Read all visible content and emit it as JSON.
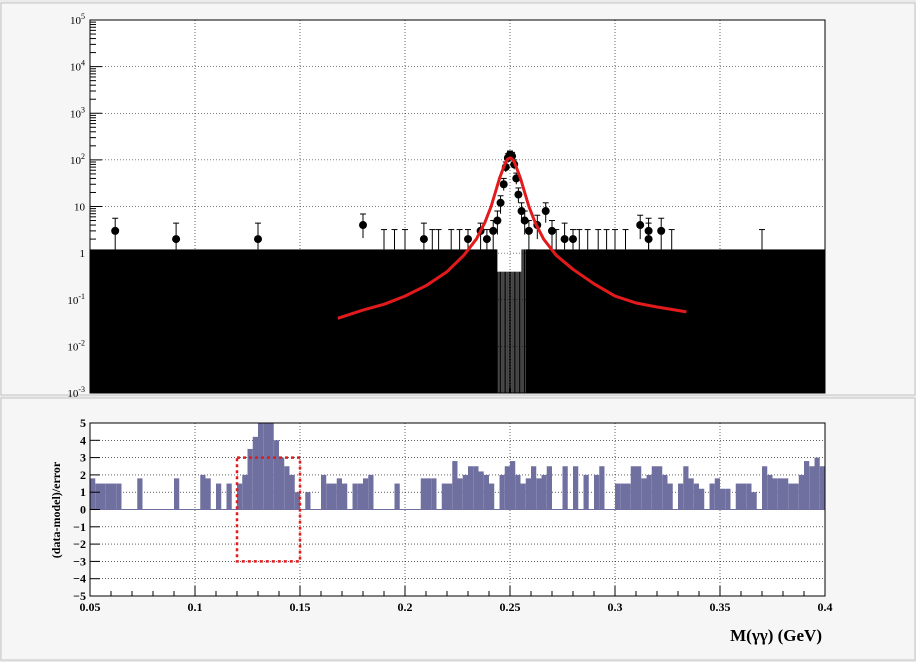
{
  "chart_data": [
    {
      "panel": "top",
      "type": "scatter",
      "y_scale": "log",
      "xlim": [
        0.05,
        0.4
      ],
      "ylim": [
        0.001,
        100000
      ],
      "grid": true,
      "yticks": [
        {
          "v": 0.001,
          "base": "10",
          "exp": "-3"
        },
        {
          "v": 0.01,
          "base": "10",
          "exp": "-2"
        },
        {
          "v": 0.1,
          "base": "10",
          "exp": "-1"
        },
        {
          "v": 1,
          "base": "1",
          "exp": ""
        },
        {
          "v": 10,
          "base": "10",
          "exp": ""
        },
        {
          "v": 100,
          "base": "10",
          "exp": "2"
        },
        {
          "v": 1000,
          "base": "10",
          "exp": "3"
        },
        {
          "v": 10000,
          "base": "10",
          "exp": "4"
        },
        {
          "v": 100000,
          "base": "10",
          "exp": "5"
        }
      ],
      "data_band_level": 1.2,
      "data_points": [
        {
          "x": 0.062,
          "y": 3,
          "lo": 1.2,
          "hi": 5.6
        },
        {
          "x": 0.091,
          "y": 2,
          "lo": 1.2,
          "hi": 4.4
        },
        {
          "x": 0.13,
          "y": 2,
          "lo": 1.2,
          "hi": 4.4
        },
        {
          "x": 0.18,
          "y": 4,
          "lo": 2.1,
          "hi": 6.9
        },
        {
          "x": 0.209,
          "y": 2,
          "lo": 1.2,
          "hi": 4.4
        },
        {
          "x": 0.23,
          "y": 2,
          "lo": 1.2,
          "hi": 3.2
        },
        {
          "x": 0.236,
          "y": 3,
          "lo": 1.2,
          "hi": 4.4
        },
        {
          "x": 0.239,
          "y": 2,
          "lo": 1.2,
          "hi": 3.2
        },
        {
          "x": 0.242,
          "y": 3,
          "lo": 1.2,
          "hi": 5.0
        },
        {
          "x": 0.244,
          "y": 5,
          "lo": 2.5,
          "hi": 8.0
        },
        {
          "x": 0.2455,
          "y": 12,
          "lo": 7,
          "hi": 17
        },
        {
          "x": 0.247,
          "y": 30,
          "lo": 22,
          "hi": 40
        },
        {
          "x": 0.248,
          "y": 70,
          "lo": 55,
          "hi": 90
        },
        {
          "x": 0.249,
          "y": 110,
          "lo": 90,
          "hi": 135
        },
        {
          "x": 0.25,
          "y": 130,
          "lo": 108,
          "hi": 155
        },
        {
          "x": 0.251,
          "y": 120,
          "lo": 100,
          "hi": 145
        },
        {
          "x": 0.252,
          "y": 80,
          "lo": 63,
          "hi": 100
        },
        {
          "x": 0.253,
          "y": 40,
          "lo": 30,
          "hi": 52
        },
        {
          "x": 0.254,
          "y": 18,
          "lo": 12,
          "hi": 25
        },
        {
          "x": 0.2555,
          "y": 8,
          "lo": 4.5,
          "hi": 12
        },
        {
          "x": 0.257,
          "y": 5,
          "lo": 2.5,
          "hi": 8.0
        },
        {
          "x": 0.259,
          "y": 3,
          "lo": 1.2,
          "hi": 5.0
        },
        {
          "x": 0.263,
          "y": 4,
          "lo": 2.0,
          "hi": 6.5
        },
        {
          "x": 0.267,
          "y": 8,
          "lo": 4.5,
          "hi": 12
        },
        {
          "x": 0.27,
          "y": 3,
          "lo": 1.2,
          "hi": 5.0
        },
        {
          "x": 0.276,
          "y": 2,
          "lo": 1.2,
          "hi": 4.4
        },
        {
          "x": 0.28,
          "y": 2,
          "lo": 1.2,
          "hi": 3.2
        },
        {
          "x": 0.312,
          "y": 4,
          "lo": 2.0,
          "hi": 6.5
        },
        {
          "x": 0.316,
          "y": 3,
          "lo": 1.2,
          "hi": 5.6
        },
        {
          "x": 0.316,
          "y": 2,
          "lo": 1.2,
          "hi": 4.4
        },
        {
          "x": 0.322,
          "y": 3,
          "lo": 1.2,
          "hi": 5.6
        }
      ],
      "empty_bin_errorbars": {
        "hi": 3.2,
        "x": [
          0.19,
          0.195,
          0.2,
          0.213,
          0.216,
          0.222,
          0.226,
          0.272,
          0.283,
          0.287,
          0.292,
          0.296,
          0.3,
          0.305,
          0.327,
          0.37
        ]
      },
      "model_curve": {
        "name": "",
        "color": "#e31a1c",
        "x": [
          0.168,
          0.18,
          0.19,
          0.2,
          0.21,
          0.22,
          0.228,
          0.234,
          0.238,
          0.241,
          0.243,
          0.245,
          0.247,
          0.248,
          0.249,
          0.25,
          0.251,
          0.252,
          0.253,
          0.255,
          0.257,
          0.259,
          0.262,
          0.266,
          0.272,
          0.28,
          0.29,
          0.3,
          0.31,
          0.32,
          0.334
        ],
        "y": [
          0.04,
          0.06,
          0.08,
          0.12,
          0.2,
          0.4,
          0.9,
          2.0,
          4.5,
          10,
          20,
          40,
          70,
          90,
          105,
          110,
          105,
          90,
          70,
          40,
          20,
          10,
          4.5,
          2.0,
          0.9,
          0.45,
          0.22,
          0.12,
          0.085,
          0.07,
          0.055
        ]
      }
    },
    {
      "panel": "bottom",
      "type": "bar",
      "xlim": [
        0.05,
        0.4
      ],
      "ylim": [
        -5,
        5
      ],
      "grid": true,
      "xticks": [
        "0.05",
        "0.1",
        "0.15",
        "0.2",
        "0.25",
        "0.3",
        "0.35",
        "0.4"
      ],
      "yticks": [
        "5",
        "4",
        "3",
        "2",
        "1",
        "0",
        "−1",
        "−2",
        "−3",
        "−4",
        "−5"
      ],
      "ylabel": "(data-model)/error",
      "xlabel": "M(γγ) (GeV)",
      "bar_color": "#7070a0",
      "bin_width": 0.0025,
      "bins": [
        {
          "x": 0.0525,
          "v": 1.8
        },
        {
          "x": 0.055,
          "v": 1.5
        },
        {
          "x": 0.0575,
          "v": 1.5
        },
        {
          "x": 0.06,
          "v": 1.5
        },
        {
          "x": 0.0625,
          "v": 1.5
        },
        {
          "x": 0.065,
          "v": 1.5
        },
        {
          "x": 0.075,
          "v": 1.8
        },
        {
          "x": 0.0925,
          "v": 1.8
        },
        {
          "x": 0.105,
          "v": 2.0
        },
        {
          "x": 0.1075,
          "v": 1.8
        },
        {
          "x": 0.1125,
          "v": 1.5
        },
        {
          "x": 0.1175,
          "v": 1.5
        },
        {
          "x": 0.1225,
          "v": 1.5
        },
        {
          "x": 0.125,
          "v": 2.0
        },
        {
          "x": 0.1275,
          "v": 3.5
        },
        {
          "x": 0.13,
          "v": 4.2
        },
        {
          "x": 0.1325,
          "v": 5.0
        },
        {
          "x": 0.135,
          "v": 5.0
        },
        {
          "x": 0.1375,
          "v": 5.0
        },
        {
          "x": 0.14,
          "v": 4.0
        },
        {
          "x": 0.1425,
          "v": 3.0
        },
        {
          "x": 0.145,
          "v": 2.5
        },
        {
          "x": 0.1475,
          "v": 2.0
        },
        {
          "x": 0.15,
          "v": 1.0
        },
        {
          "x": 0.155,
          "v": 1.0
        },
        {
          "x": 0.1625,
          "v": 2.0
        },
        {
          "x": 0.165,
          "v": 1.5
        },
        {
          "x": 0.1675,
          "v": 1.5
        },
        {
          "x": 0.17,
          "v": 1.8
        },
        {
          "x": 0.1725,
          "v": 1.5
        },
        {
          "x": 0.1775,
          "v": 1.5
        },
        {
          "x": 0.18,
          "v": 1.5
        },
        {
          "x": 0.1825,
          "v": 1.8
        },
        {
          "x": 0.185,
          "v": 2.0
        },
        {
          "x": 0.1975,
          "v": 1.5
        },
        {
          "x": 0.21,
          "v": 1.8
        },
        {
          "x": 0.2125,
          "v": 1.8
        },
        {
          "x": 0.215,
          "v": 1.8
        },
        {
          "x": 0.22,
          "v": 1.5
        },
        {
          "x": 0.2225,
          "v": 1.5
        },
        {
          "x": 0.225,
          "v": 2.8
        },
        {
          "x": 0.2275,
          "v": 1.8
        },
        {
          "x": 0.23,
          "v": 2.0
        },
        {
          "x": 0.2325,
          "v": 2.5
        },
        {
          "x": 0.235,
          "v": 2.5
        },
        {
          "x": 0.2375,
          "v": 2.2
        },
        {
          "x": 0.24,
          "v": 2.0
        },
        {
          "x": 0.2425,
          "v": 1.5
        },
        {
          "x": 0.2475,
          "v": 2.0
        },
        {
          "x": 0.25,
          "v": 2.5
        },
        {
          "x": 0.2525,
          "v": 2.8
        },
        {
          "x": 0.255,
          "v": 2.0
        },
        {
          "x": 0.2575,
          "v": 1.5
        },
        {
          "x": 0.26,
          "v": 1.8
        },
        {
          "x": 0.2625,
          "v": 2.5
        },
        {
          "x": 0.265,
          "v": 1.8
        },
        {
          "x": 0.2675,
          "v": 2.0
        },
        {
          "x": 0.27,
          "v": 2.5
        },
        {
          "x": 0.2775,
          "v": 2.5
        },
        {
          "x": 0.2825,
          "v": 2.5
        },
        {
          "x": 0.2875,
          "v": 2.0
        },
        {
          "x": 0.2925,
          "v": 2.0
        },
        {
          "x": 0.295,
          "v": 2.5
        },
        {
          "x": 0.3025,
          "v": 1.5
        },
        {
          "x": 0.305,
          "v": 1.5
        },
        {
          "x": 0.3075,
          "v": 1.5
        },
        {
          "x": 0.31,
          "v": 2.5
        },
        {
          "x": 0.3125,
          "v": 2.5
        },
        {
          "x": 0.315,
          "v": 1.8
        },
        {
          "x": 0.3175,
          "v": 2.0
        },
        {
          "x": 0.32,
          "v": 2.5
        },
        {
          "x": 0.3225,
          "v": 2.5
        },
        {
          "x": 0.325,
          "v": 2.0
        },
        {
          "x": 0.3275,
          "v": 1.5
        },
        {
          "x": 0.3325,
          "v": 1.5
        },
        {
          "x": 0.335,
          "v": 2.5
        },
        {
          "x": 0.3375,
          "v": 1.8
        },
        {
          "x": 0.34,
          "v": 1.5
        },
        {
          "x": 0.3425,
          "v": 1.2
        },
        {
          "x": 0.3475,
          "v": 1.5
        },
        {
          "x": 0.35,
          "v": 1.8
        },
        {
          "x": 0.3525,
          "v": 1.2
        },
        {
          "x": 0.355,
          "v": 1.2
        },
        {
          "x": 0.36,
          "v": 1.5
        },
        {
          "x": 0.3625,
          "v": 1.5
        },
        {
          "x": 0.365,
          "v": 1.5
        },
        {
          "x": 0.3675,
          "v": 1.0
        },
        {
          "x": 0.3725,
          "v": 2.5
        },
        {
          "x": 0.375,
          "v": 2.0
        },
        {
          "x": 0.3775,
          "v": 1.8
        },
        {
          "x": 0.38,
          "v": 1.8
        },
        {
          "x": 0.3825,
          "v": 1.8
        },
        {
          "x": 0.385,
          "v": 1.5
        },
        {
          "x": 0.3875,
          "v": 1.5
        },
        {
          "x": 0.39,
          "v": 2.0
        },
        {
          "x": 0.3925,
          "v": 2.8
        },
        {
          "x": 0.395,
          "v": 2.5
        },
        {
          "x": 0.3975,
          "v": 3.0
        },
        {
          "x": 0.4,
          "v": 2.5
        }
      ],
      "highlight_box": {
        "x0": 0.12,
        "x1": 0.15,
        "y0": -3,
        "y1": 3,
        "color": "#e31a1c"
      }
    }
  ]
}
